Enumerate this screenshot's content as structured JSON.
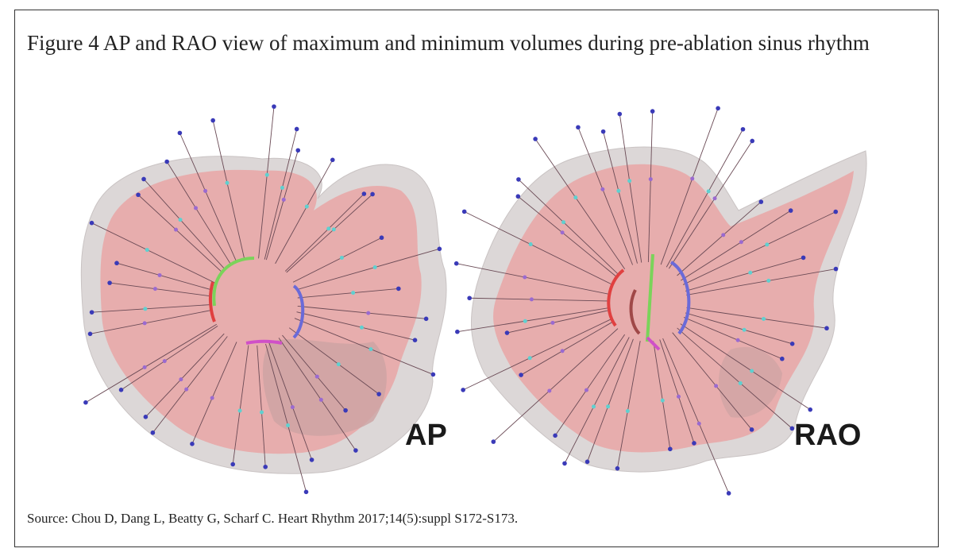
{
  "figure": {
    "caption": "Figure 4 AP and RAO view of maximum and minimum volumes during pre-ablation sinus rhythm",
    "panels": [
      {
        "label": "AP"
      },
      {
        "label": "RAO"
      }
    ],
    "source": "Source:  Chou D, Dang L, Beatty G, Scharf C. Heart Rhythm 2017;14(5):suppl S172-S173."
  }
}
